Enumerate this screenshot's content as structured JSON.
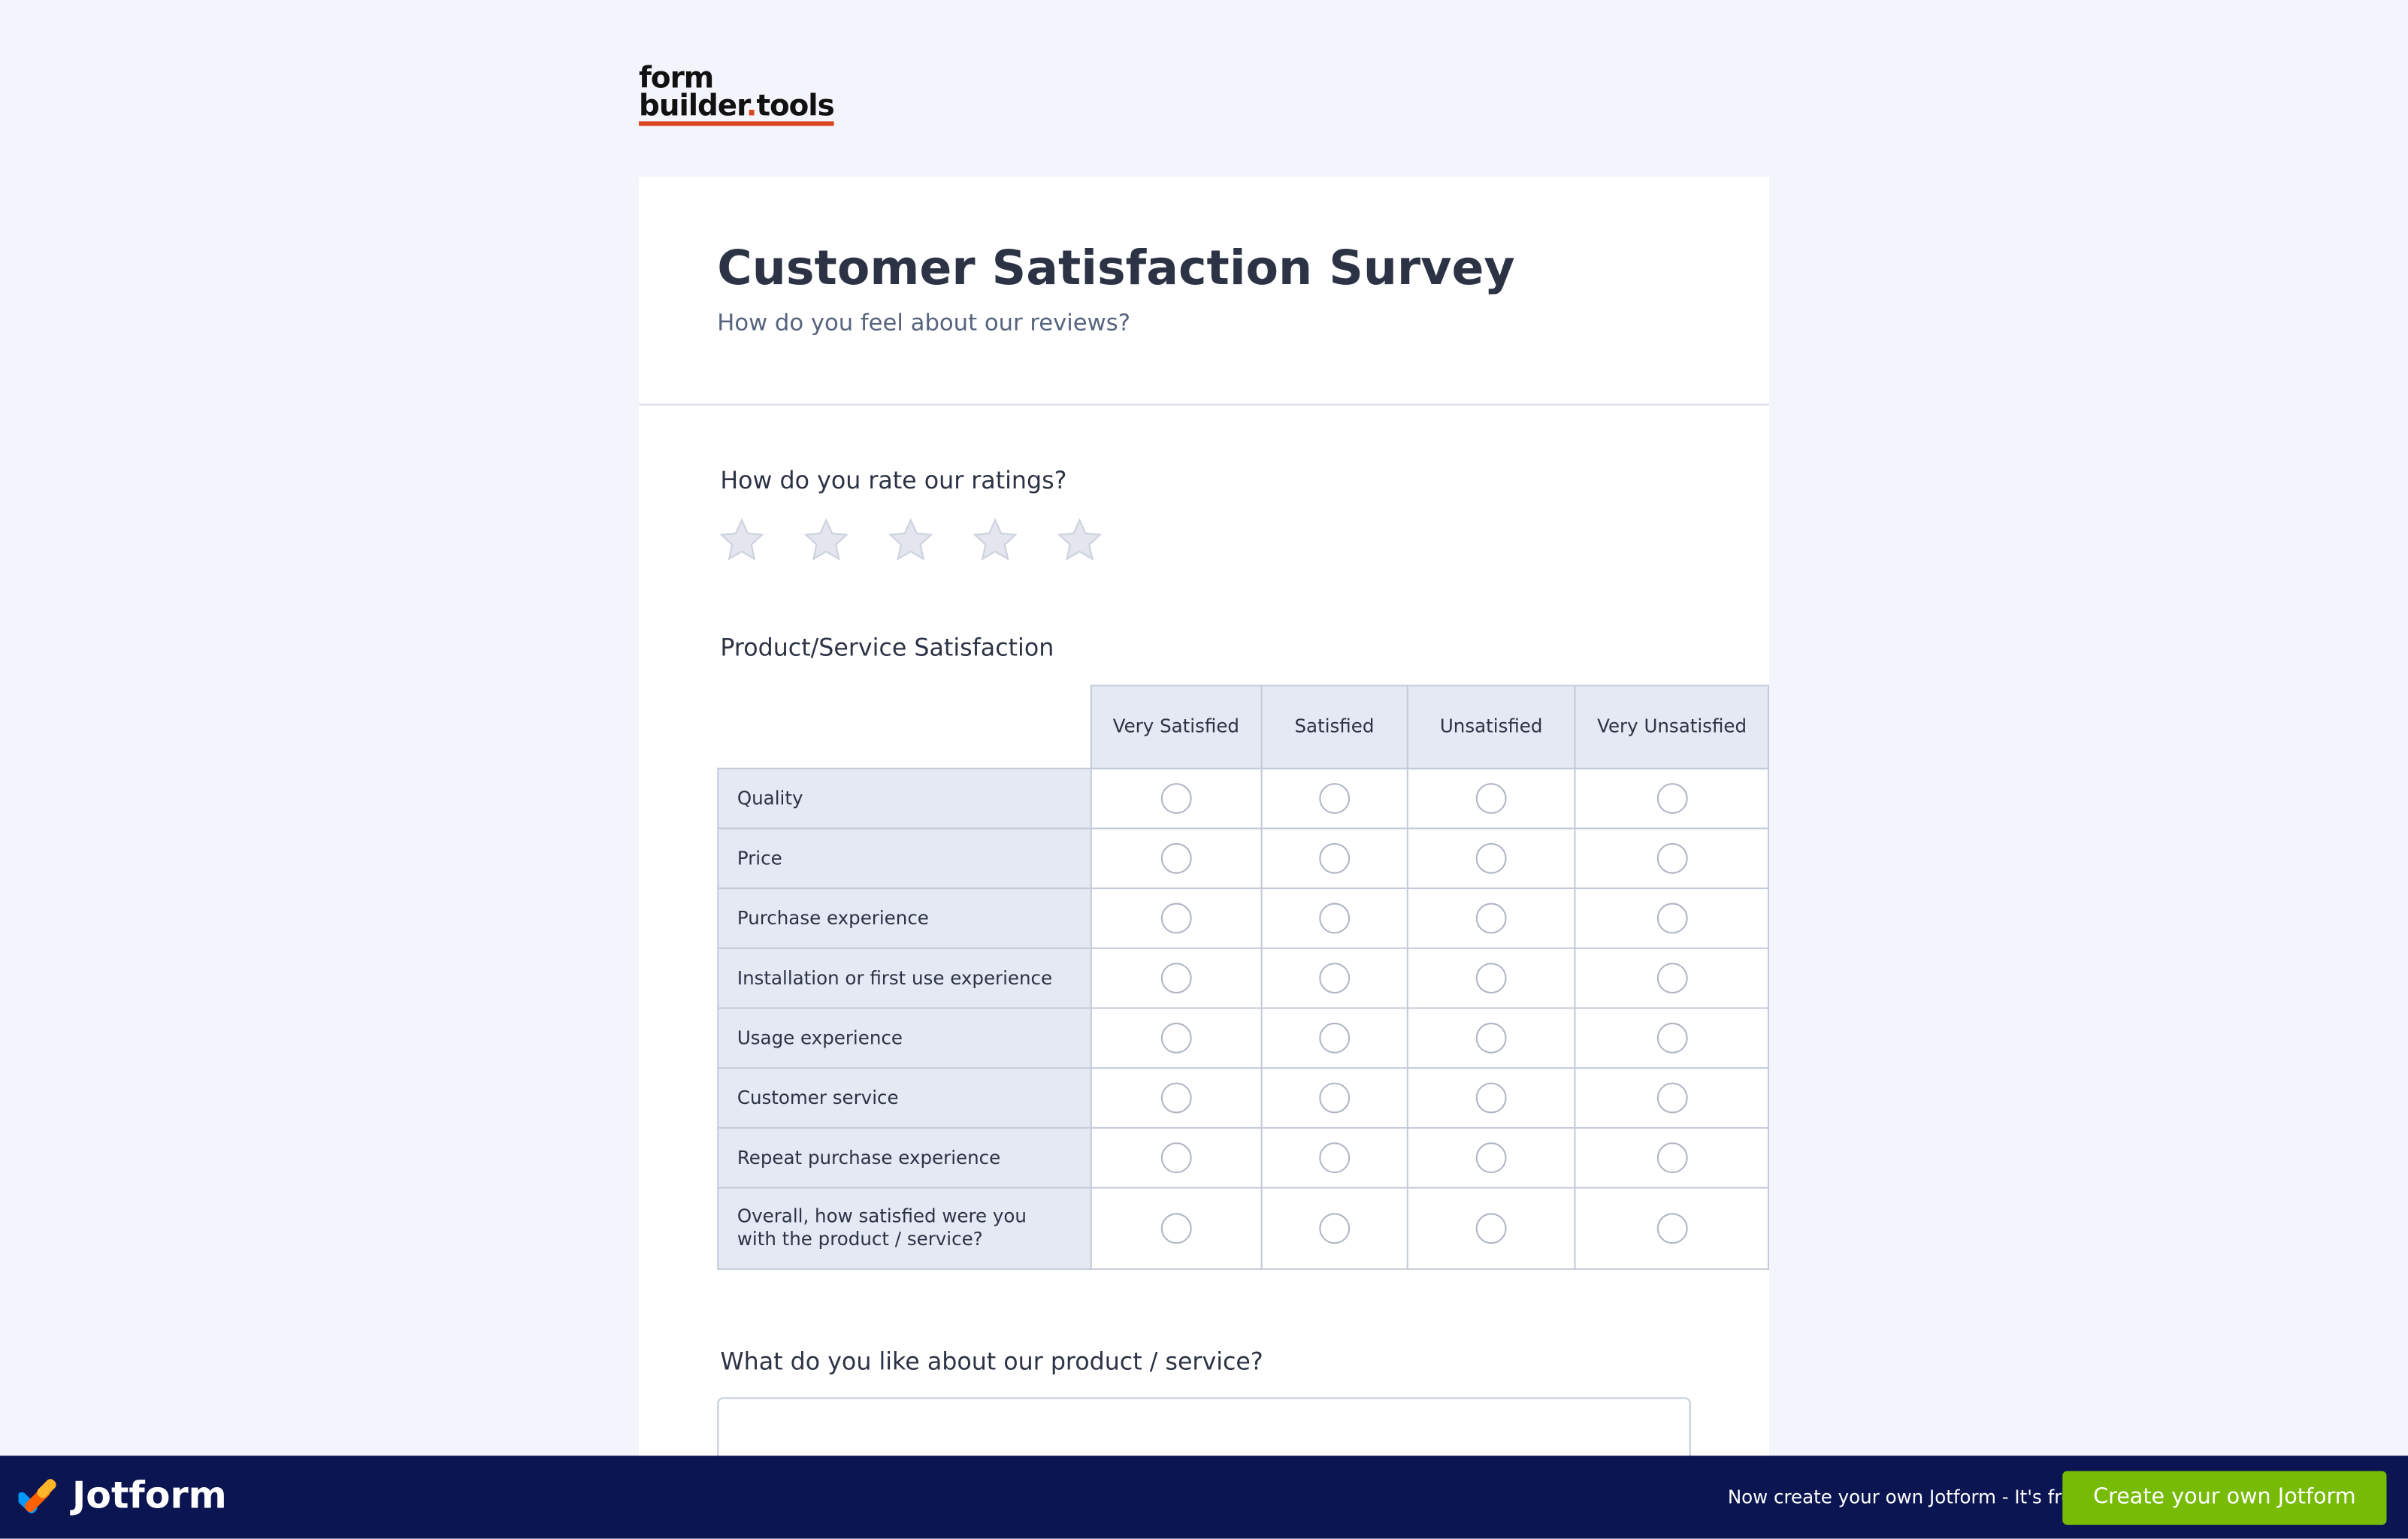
{
  "logo": {
    "line1": "form",
    "line2a": "builder",
    "dot": ".",
    "line2b": "tools"
  },
  "header": {
    "title": "Customer Satisfaction Survey",
    "subtitle": "How do you feel about our reviews?"
  },
  "rating": {
    "label": "How do you rate our ratings?",
    "stars": 5
  },
  "matrix": {
    "label": "Product/Service Satisfaction",
    "columns": [
      "Very Satisfied",
      "Satisfied",
      "Unsatisfied",
      "Very Unsatisfied"
    ],
    "rows": [
      "Quality",
      "Price",
      "Purchase experience",
      "Installation or first use experience",
      "Usage experience",
      "Customer service",
      "Repeat purchase experience",
      "Overall, how satisfied were you with the product / service?"
    ]
  },
  "question3": {
    "label": "What do you like about our product / service?"
  },
  "footer": {
    "brand": "Jotform",
    "promo": "Now create your own Jotform - It's free!",
    "button": "Create your own Jotform"
  }
}
